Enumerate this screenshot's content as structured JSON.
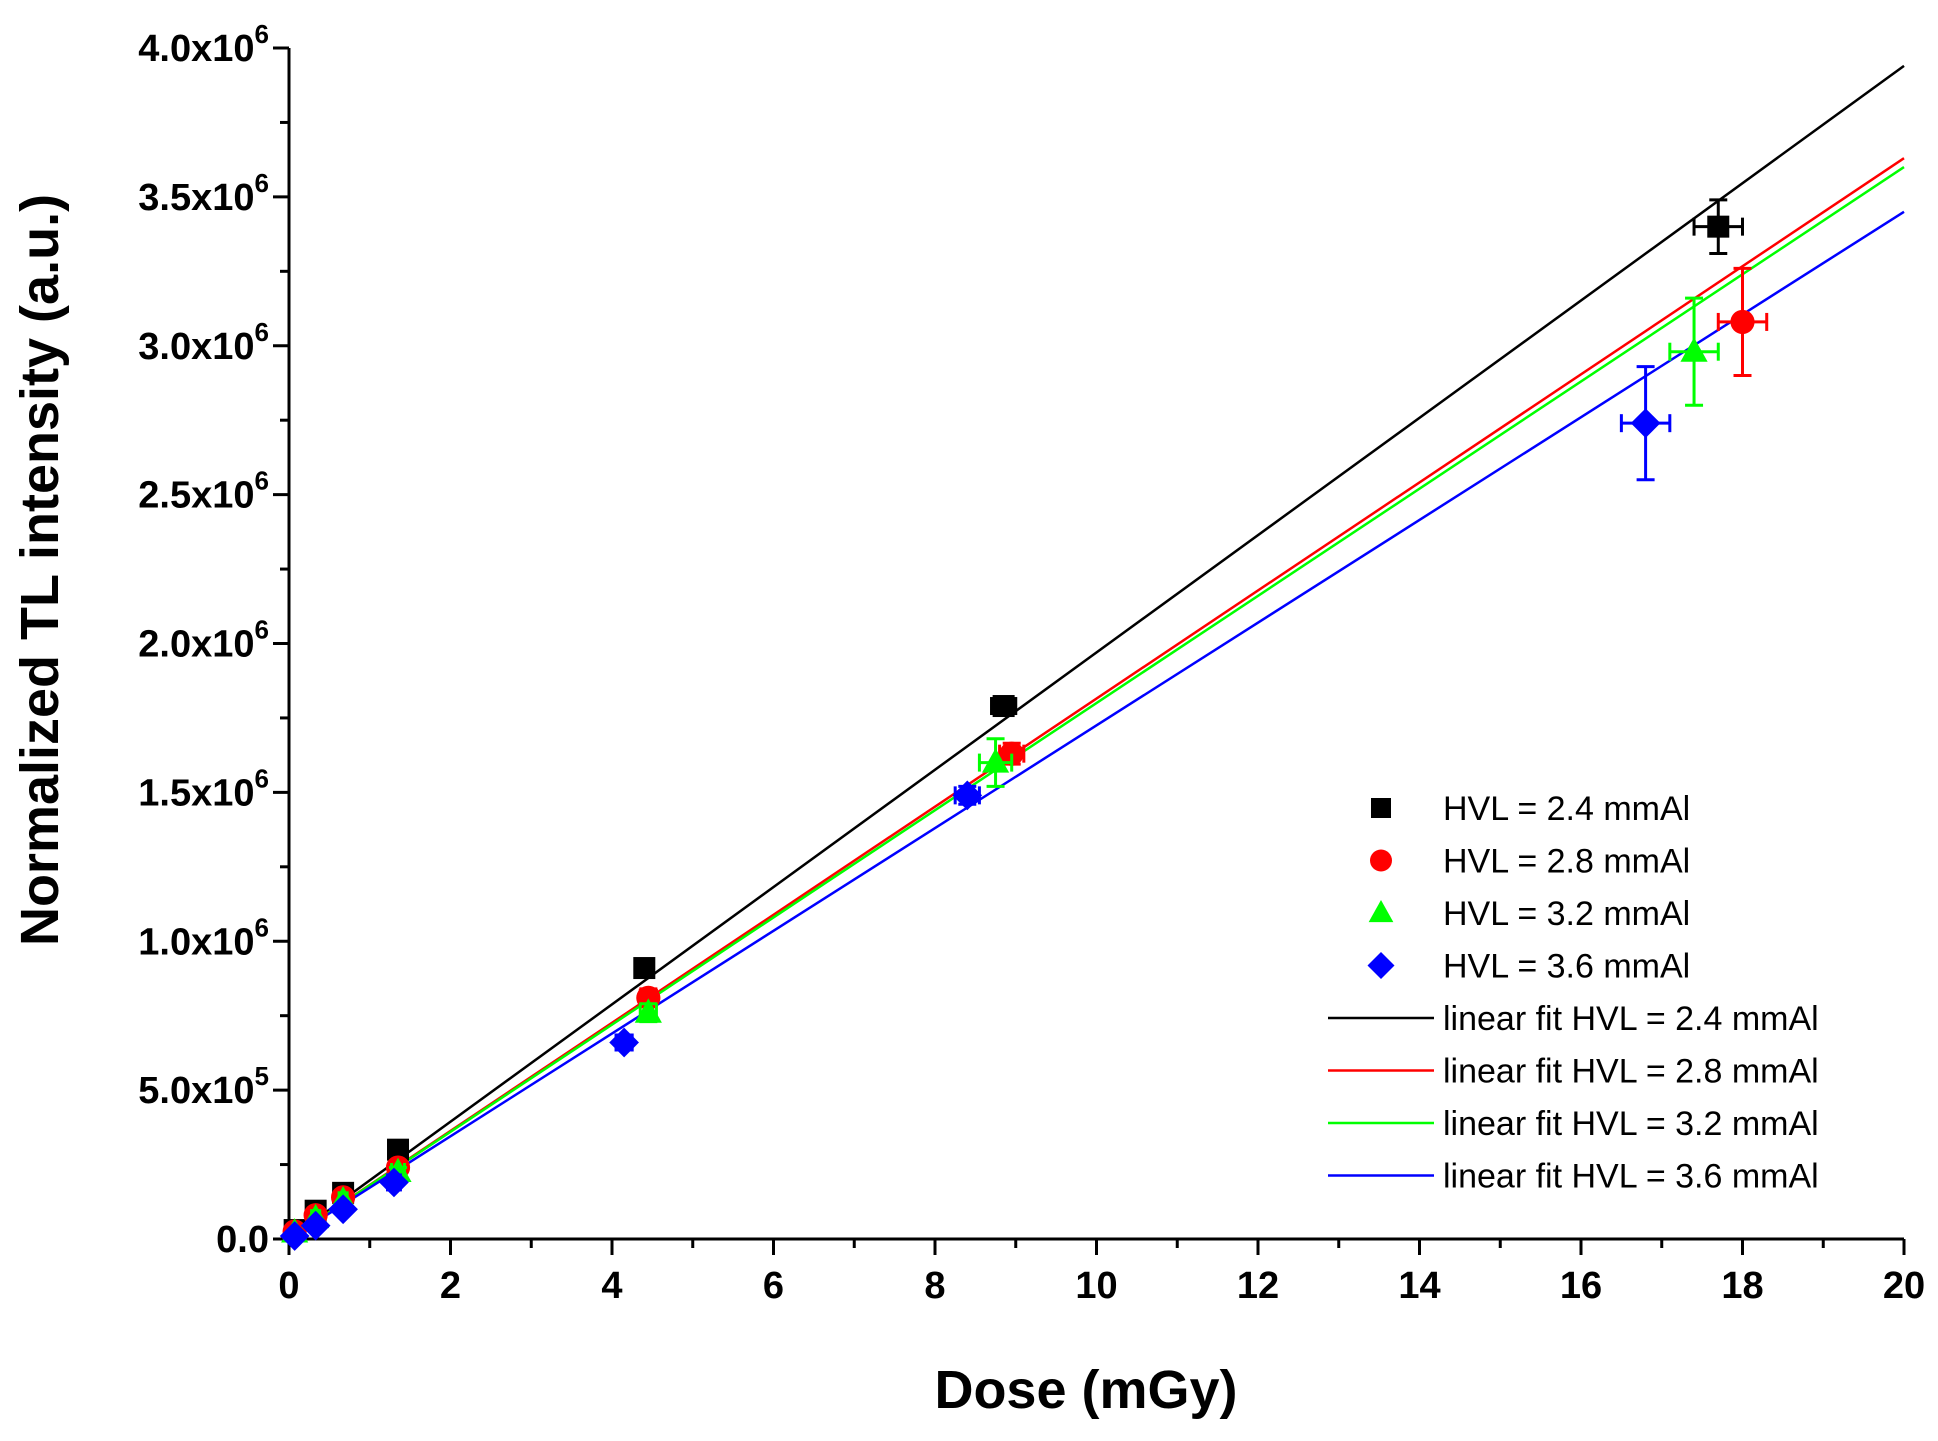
{
  "chart_data": {
    "type": "scatter",
    "title": "",
    "xlabel": "Dose (mGy)",
    "ylabel": "Normalized TL intensity (a.u.)",
    "xlim": [
      0,
      20
    ],
    "ylim": [
      0,
      4000000
    ],
    "x_ticks": [
      {
        "value": 0,
        "label": "0"
      },
      {
        "value": 2,
        "label": "2"
      },
      {
        "value": 4,
        "label": "4"
      },
      {
        "value": 6,
        "label": "6"
      },
      {
        "value": 8,
        "label": "8"
      },
      {
        "value": 10,
        "label": "10"
      },
      {
        "value": 12,
        "label": "12"
      },
      {
        "value": 14,
        "label": "14"
      },
      {
        "value": 16,
        "label": "16"
      },
      {
        "value": 18,
        "label": "18"
      },
      {
        "value": 20,
        "label": "20"
      }
    ],
    "y_ticks": [
      {
        "value": 0,
        "mantissa": "0.0",
        "exponent": ""
      },
      {
        "value": 500000,
        "mantissa": "5.0x10",
        "exponent": "5"
      },
      {
        "value": 1000000,
        "mantissa": "1.0x10",
        "exponent": "6"
      },
      {
        "value": 1500000,
        "mantissa": "1.5x10",
        "exponent": "6"
      },
      {
        "value": 2000000,
        "mantissa": "2.0x10",
        "exponent": "6"
      },
      {
        "value": 2500000,
        "mantissa": "2.5x10",
        "exponent": "6"
      },
      {
        "value": 3000000,
        "mantissa": "3.0x10",
        "exponent": "6"
      },
      {
        "value": 3500000,
        "mantissa": "3.5x10",
        "exponent": "6"
      },
      {
        "value": 4000000,
        "mantissa": "4.0x10",
        "exponent": "6"
      }
    ],
    "grid": false,
    "legend_position": "bottom-right",
    "series": [
      {
        "name": "HVL = 2.4 mmAl",
        "marker": "square",
        "color": "#000000",
        "points": [
          {
            "x": 0.07,
            "y": 30000,
            "xerr": 0.03,
            "yerr": 5000
          },
          {
            "x": 0.33,
            "y": 95000,
            "xerr": 0.05,
            "yerr": 8000
          },
          {
            "x": 0.67,
            "y": 155000,
            "xerr": 0.05,
            "yerr": 10000
          },
          {
            "x": 1.35,
            "y": 300000,
            "xerr": 0.08,
            "yerr": 15000
          },
          {
            "x": 4.4,
            "y": 910000,
            "xerr": 0.1,
            "yerr": 25000
          },
          {
            "x": 8.85,
            "y": 1790000,
            "xerr": 0.15,
            "yerr": 30000
          },
          {
            "x": 17.7,
            "y": 3400000,
            "xerr": 0.3,
            "yerr": 90000
          }
        ]
      },
      {
        "name": "HVL = 2.8 mmAl",
        "marker": "circle",
        "color": "#ff0000",
        "points": [
          {
            "x": 0.07,
            "y": 25000,
            "xerr": 0.03,
            "yerr": 5000
          },
          {
            "x": 0.33,
            "y": 80000,
            "xerr": 0.05,
            "yerr": 8000
          },
          {
            "x": 0.67,
            "y": 140000,
            "xerr": 0.05,
            "yerr": 10000
          },
          {
            "x": 1.35,
            "y": 240000,
            "xerr": 0.08,
            "yerr": 15000
          },
          {
            "x": 4.45,
            "y": 810000,
            "xerr": 0.1,
            "yerr": 30000
          },
          {
            "x": 8.95,
            "y": 1630000,
            "xerr": 0.15,
            "yerr": 35000
          },
          {
            "x": 18.0,
            "y": 3080000,
            "xerr": 0.3,
            "yerr": 180000
          }
        ]
      },
      {
        "name": "HVL = 3.2 mmAl",
        "marker": "triangle",
        "color": "#00ff00",
        "points": [
          {
            "x": 0.07,
            "y": 22000,
            "xerr": 0.03,
            "yerr": 5000
          },
          {
            "x": 0.33,
            "y": 70000,
            "xerr": 0.05,
            "yerr": 8000
          },
          {
            "x": 0.67,
            "y": 130000,
            "xerr": 0.05,
            "yerr": 10000
          },
          {
            "x": 1.35,
            "y": 225000,
            "xerr": 0.08,
            "yerr": 15000
          },
          {
            "x": 4.45,
            "y": 760000,
            "xerr": 0.1,
            "yerr": 30000
          },
          {
            "x": 8.75,
            "y": 1600000,
            "xerr": 0.2,
            "yerr": 80000
          },
          {
            "x": 17.4,
            "y": 2980000,
            "xerr": 0.3,
            "yerr": 180000
          }
        ]
      },
      {
        "name": "HVL = 3.6 mmAl",
        "marker": "diamond",
        "color": "#0000ff",
        "points": [
          {
            "x": 0.07,
            "y": 10000,
            "xerr": 0.03,
            "yerr": 5000
          },
          {
            "x": 0.33,
            "y": 45000,
            "xerr": 0.05,
            "yerr": 8000
          },
          {
            "x": 0.67,
            "y": 100000,
            "xerr": 0.05,
            "yerr": 10000
          },
          {
            "x": 1.3,
            "y": 190000,
            "xerr": 0.08,
            "yerr": 15000
          },
          {
            "x": 4.15,
            "y": 660000,
            "xerr": 0.1,
            "yerr": 25000
          },
          {
            "x": 8.4,
            "y": 1490000,
            "xerr": 0.15,
            "yerr": 30000
          },
          {
            "x": 16.8,
            "y": 2740000,
            "xerr": 0.3,
            "yerr": 190000
          }
        ]
      }
    ],
    "fits": [
      {
        "name": "linear fit HVL = 2.4 mmAl",
        "color": "#000000",
        "intercept": 0,
        "slope": 197000
      },
      {
        "name": "linear fit HVL = 2.8 mmAl",
        "color": "#ff0000",
        "intercept": 0,
        "slope": 181500
      },
      {
        "name": "linear fit HVL = 3.2 mmAl",
        "color": "#00ff00",
        "intercept": 0,
        "slope": 180000
      },
      {
        "name": "linear fit HVL = 3.6 mmAl",
        "color": "#0000ff",
        "intercept": 0,
        "slope": 172500
      }
    ]
  }
}
